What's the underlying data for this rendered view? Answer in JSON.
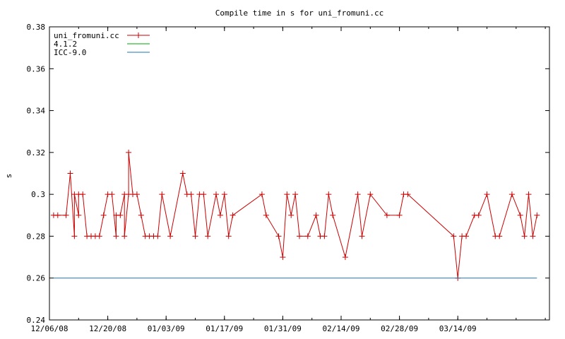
{
  "chart_data": {
    "type": "line",
    "title": "Compile time in s for uni_fromuni.cc",
    "xlabel": "",
    "ylabel": "s",
    "ylim": [
      0.24,
      0.38
    ],
    "xlim": [
      "2008-12-06",
      "2009-04-05"
    ],
    "yticks": [
      "0.24",
      "0.26",
      "0.28",
      "0.3",
      "0.32",
      "0.34",
      "0.36",
      "0.38"
    ],
    "xticks": [
      {
        "date": "2008-12-06",
        "label": "12/06/08"
      },
      {
        "date": "2008-12-20",
        "label": "12/20/08"
      },
      {
        "date": "2009-01-03",
        "label": "01/03/09"
      },
      {
        "date": "2009-01-17",
        "label": "01/17/09"
      },
      {
        "date": "2009-01-31",
        "label": "01/31/09"
      },
      {
        "date": "2009-02-14",
        "label": "02/14/09"
      },
      {
        "date": "2009-02-28",
        "label": "02/28/09"
      },
      {
        "date": "2009-03-14",
        "label": "03/14/09"
      }
    ],
    "grid": false,
    "legend_position": "top-left",
    "series": [
      {
        "name": "uni_fromuni.cc",
        "color": "#cc0000",
        "marker": "plus",
        "x": [
          "2008-12-07",
          "2008-12-08",
          "2008-12-10",
          "2008-12-11",
          "2008-12-12",
          "2008-12-12",
          "2008-12-13",
          "2008-12-13",
          "2008-12-14",
          "2008-12-15",
          "2008-12-16",
          "2008-12-17",
          "2008-12-18",
          "2008-12-19",
          "2008-12-20",
          "2008-12-21",
          "2008-12-22",
          "2008-12-22",
          "2008-12-23",
          "2008-12-24",
          "2008-12-24",
          "2008-12-25",
          "2008-12-25",
          "2008-12-26",
          "2008-12-27",
          "2008-12-28",
          "2008-12-29",
          "2008-12-30",
          "2008-12-31",
          "2009-01-01",
          "2009-01-02",
          "2009-01-04",
          "2009-01-07",
          "2009-01-08",
          "2009-01-09",
          "2009-01-10",
          "2009-01-11",
          "2009-01-12",
          "2009-01-13",
          "2009-01-15",
          "2009-01-16",
          "2009-01-17",
          "2009-01-18",
          "2009-01-19",
          "2009-01-26",
          "2009-01-27",
          "2009-01-30",
          "2009-01-31",
          "2009-02-01",
          "2009-02-02",
          "2009-02-03",
          "2009-02-04",
          "2009-02-06",
          "2009-02-08",
          "2009-02-09",
          "2009-02-10",
          "2009-02-11",
          "2009-02-12",
          "2009-02-15",
          "2009-02-18",
          "2009-02-19",
          "2009-02-21",
          "2009-02-25",
          "2009-02-28",
          "2009-03-01",
          "2009-03-02",
          "2009-03-13",
          "2009-03-14",
          "2009-03-15",
          "2009-03-16",
          "2009-03-18",
          "2009-03-19",
          "2009-03-21",
          "2009-03-23",
          "2009-03-24",
          "2009-03-27",
          "2009-03-29",
          "2009-03-30",
          "2009-03-31",
          "2009-04-01",
          "2009-04-02"
        ],
        "y": [
          0.29,
          0.29,
          0.29,
          0.31,
          0.28,
          0.3,
          0.29,
          0.3,
          0.3,
          0.28,
          0.28,
          0.28,
          0.28,
          0.29,
          0.3,
          0.3,
          0.28,
          0.29,
          0.29,
          0.3,
          0.28,
          0.3,
          0.32,
          0.3,
          0.3,
          0.29,
          0.28,
          0.28,
          0.28,
          0.28,
          0.3,
          0.28,
          0.31,
          0.3,
          0.3,
          0.28,
          0.3,
          0.3,
          0.28,
          0.3,
          0.29,
          0.3,
          0.28,
          0.29,
          0.3,
          0.29,
          0.28,
          0.27,
          0.3,
          0.29,
          0.3,
          0.28,
          0.28,
          0.29,
          0.28,
          0.28,
          0.3,
          0.29,
          0.27,
          0.3,
          0.28,
          0.3,
          0.29,
          0.29,
          0.3,
          0.3,
          0.28,
          0.26,
          0.28,
          0.28,
          0.29,
          0.29,
          0.3,
          0.28,
          0.28,
          0.3,
          0.29,
          0.28,
          0.3,
          0.28,
          0.29
        ]
      },
      {
        "name": "4.1.2",
        "color": "#00aa00",
        "x": [],
        "y": []
      },
      {
        "name": "ICC-9.0",
        "color": "#1f77b4",
        "x": [
          "2008-12-07",
          "2009-04-02"
        ],
        "y": [
          0.26,
          0.26
        ]
      }
    ]
  }
}
